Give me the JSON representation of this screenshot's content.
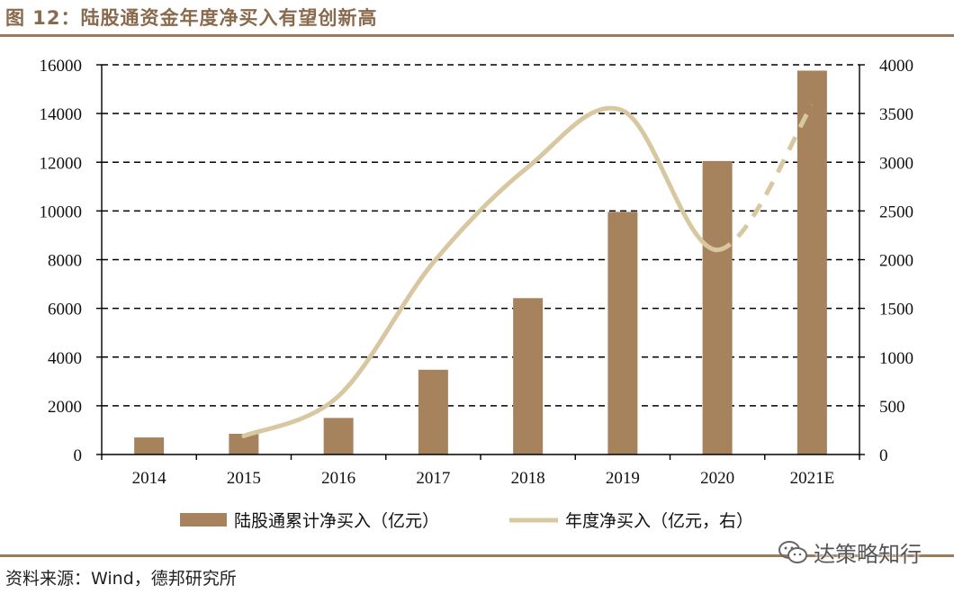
{
  "figure_title": "图 12：陆股通资金年度净买入有望创新高",
  "source": "资料来源：Wind，德邦研究所",
  "watermark": "达策略知行",
  "colors": {
    "bar": "#a6835d",
    "line": "#d8c8a2",
    "rule": "#9c7b5c",
    "title": "#8a6a4c"
  },
  "chart_data": {
    "type": "bar+line",
    "categories": [
      "2014",
      "2015",
      "2016",
      "2017",
      "2018",
      "2019",
      "2020",
      "2021E"
    ],
    "series": [
      {
        "name": "陆股通累计净买入（亿元）",
        "type": "bar",
        "axis": "left",
        "values": [
          700,
          850,
          1500,
          3480,
          6420,
          9960,
          12050,
          15760
        ]
      },
      {
        "name": "年度净买入（亿元，右）",
        "type": "line",
        "axis": "right",
        "values": [
          null,
          190,
          600,
          1970,
          2950,
          3530,
          2100,
          3590
        ],
        "dashed_from_index": 6
      }
    ],
    "left_axis": {
      "min": 0,
      "max": 16000,
      "ticks": [
        "0",
        "2000",
        "4000",
        "6000",
        "8000",
        "10000",
        "12000",
        "14000",
        "16000"
      ]
    },
    "right_axis": {
      "min": 0,
      "max": 4000,
      "ticks": [
        "0",
        "500",
        "1000",
        "1500",
        "2000",
        "2500",
        "3000",
        "3500",
        "4000"
      ]
    },
    "grid": "dashed horizontal",
    "legend_position": "bottom"
  }
}
